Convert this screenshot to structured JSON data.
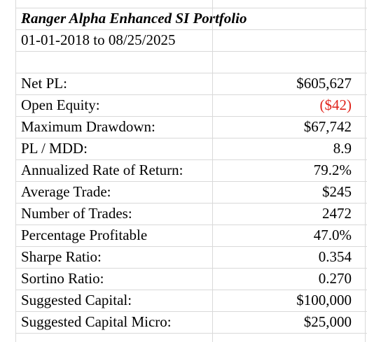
{
  "header": {
    "title": "Ranger Alpha Enhanced SI Portfolio",
    "date_range": "01-01-2018 to 08/25/2025"
  },
  "table": {
    "rows": [
      [
        "Net PL:",
        "$605,627"
      ],
      [
        "Open Equity:",
        "($42)"
      ],
      [
        "Maximum  Drawdown:",
        "$67,742"
      ],
      [
        "PL / MDD:",
        "8.9"
      ],
      [
        "Annualized Rate of Return:",
        "79.2%"
      ],
      [
        "Average Trade:",
        "$245"
      ],
      [
        "Number of Trades:",
        "2472"
      ],
      [
        "Percentage Profitable",
        "47.0%"
      ],
      [
        "Sharpe Ratio:",
        "0.354"
      ],
      [
        "Sortino Ratio:",
        "0.270"
      ],
      [
        "Suggested Capital:",
        "$100,000"
      ],
      [
        "Suggested Capital Micro:",
        "$25,000"
      ]
    ]
  }
}
